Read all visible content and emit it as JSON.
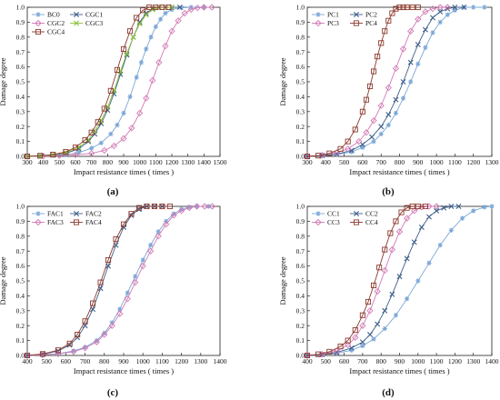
{
  "chart_data": [
    {
      "type": "line",
      "panel_label": "(a)",
      "xlabel": "Impact resistance times ( times )",
      "ylabel": "Damage degree",
      "xlim": [
        300,
        1500
      ],
      "ylim": [
        0,
        1.0
      ],
      "xticks": [
        300,
        400,
        500,
        600,
        700,
        800,
        900,
        1000,
        1100,
        1200,
        1300,
        1400,
        1500
      ],
      "yticks": [
        0,
        0.1,
        0.2,
        0.3,
        0.4,
        0.5,
        0.6,
        0.7,
        0.8,
        0.9,
        1.0
      ],
      "legend": "top-left, 2 columns",
      "series": [
        {
          "name": "BC0",
          "color": "#7aa7d6",
          "marker": "star",
          "x": [
            300,
            380,
            460,
            540,
            620,
            700,
            760,
            820,
            860,
            900,
            940,
            980,
            1010,
            1040,
            1070,
            1100,
            1130,
            1160,
            1200,
            1260,
            1320,
            1400
          ],
          "y": [
            0.0,
            0.002,
            0.006,
            0.012,
            0.025,
            0.055,
            0.09,
            0.15,
            0.21,
            0.29,
            0.4,
            0.53,
            0.63,
            0.72,
            0.8,
            0.87,
            0.92,
            0.96,
            0.985,
            0.997,
            1.0,
            1.0
          ]
        },
        {
          "name": "CGC1",
          "color": "#3e5f8a",
          "marker": "x",
          "x": [
            300,
            380,
            460,
            540,
            620,
            680,
            720,
            760,
            800,
            840,
            880,
            920,
            960,
            1000,
            1040,
            1080,
            1120,
            1160,
            1200,
            1250
          ],
          "y": [
            0.0,
            0.003,
            0.008,
            0.02,
            0.05,
            0.1,
            0.15,
            0.22,
            0.31,
            0.42,
            0.55,
            0.68,
            0.8,
            0.9,
            0.96,
            0.99,
            1.0,
            1.0,
            1.0,
            1.0
          ]
        },
        {
          "name": "CGC2",
          "color": "#d27ab5",
          "marker": "diamond",
          "x": [
            300,
            400,
            500,
            600,
            700,
            780,
            840,
            900,
            950,
            1000,
            1040,
            1080,
            1120,
            1160,
            1200,
            1240,
            1280,
            1320,
            1360,
            1400,
            1450
          ],
          "y": [
            0.0,
            0.002,
            0.005,
            0.01,
            0.02,
            0.04,
            0.07,
            0.12,
            0.19,
            0.29,
            0.39,
            0.51,
            0.63,
            0.74,
            0.84,
            0.91,
            0.96,
            0.985,
            0.996,
            1.0,
            1.0
          ]
        },
        {
          "name": "CGC3",
          "color": "#8bbf3a",
          "marker": "x",
          "x": [
            300,
            380,
            460,
            540,
            620,
            680,
            720,
            760,
            800,
            840,
            880,
            920,
            960,
            1000,
            1040,
            1080,
            1120,
            1160,
            1200
          ],
          "y": [
            0.0,
            0.003,
            0.01,
            0.025,
            0.06,
            0.11,
            0.17,
            0.24,
            0.33,
            0.44,
            0.57,
            0.69,
            0.8,
            0.89,
            0.95,
            0.985,
            1.0,
            1.0,
            1.0
          ]
        },
        {
          "name": "CGC4",
          "color": "#8b3a2e",
          "marker": "square",
          "x": [
            300,
            380,
            460,
            540,
            600,
            660,
            700,
            740,
            780,
            820,
            860,
            900,
            940,
            980,
            1020,
            1060,
            1100,
            1140,
            1180
          ],
          "y": [
            0.0,
            0.004,
            0.012,
            0.03,
            0.06,
            0.11,
            0.16,
            0.23,
            0.32,
            0.44,
            0.58,
            0.72,
            0.84,
            0.93,
            0.98,
            1.0,
            1.0,
            1.0,
            1.0
          ]
        }
      ]
    },
    {
      "type": "line",
      "panel_label": "(b)",
      "xlabel": "Impact resistance times ( times )",
      "ylabel": "Damage degree",
      "xlim": [
        300,
        1300
      ],
      "ylim": [
        0,
        1.0
      ],
      "xticks": [
        300,
        400,
        500,
        600,
        700,
        800,
        900,
        1000,
        1100,
        1200,
        1300
      ],
      "yticks": [
        0,
        0.1,
        0.2,
        0.3,
        0.4,
        0.5,
        0.6,
        0.7,
        0.8,
        0.9,
        1.0
      ],
      "legend": "top-left, 2 columns",
      "series": [
        {
          "name": "PC1",
          "color": "#7aa7d6",
          "marker": "star",
          "x": [
            300,
            380,
            460,
            540,
            600,
            660,
            700,
            740,
            780,
            820,
            860,
            900,
            940,
            980,
            1020,
            1060,
            1100,
            1150,
            1200,
            1260
          ],
          "y": [
            0.0,
            0.005,
            0.012,
            0.03,
            0.06,
            0.1,
            0.15,
            0.21,
            0.29,
            0.39,
            0.5,
            0.62,
            0.73,
            0.83,
            0.9,
            0.95,
            0.98,
            1.0,
            1.0,
            1.0
          ]
        },
        {
          "name": "PC2",
          "color": "#3e5f8a",
          "marker": "x",
          "x": [
            300,
            380,
            460,
            540,
            600,
            650,
            700,
            740,
            780,
            820,
            860,
            900,
            940,
            980,
            1020,
            1060,
            1100,
            1150
          ],
          "y": [
            0.0,
            0.006,
            0.015,
            0.04,
            0.08,
            0.13,
            0.2,
            0.28,
            0.38,
            0.5,
            0.63,
            0.75,
            0.85,
            0.93,
            0.97,
            0.99,
            1.0,
            1.0
          ]
        },
        {
          "name": "PC3",
          "color": "#d27ab5",
          "marker": "diamond",
          "x": [
            300,
            380,
            460,
            520,
            580,
            620,
            660,
            700,
            740,
            780,
            820,
            860,
            900,
            940,
            980,
            1020,
            1060
          ],
          "y": [
            0.0,
            0.008,
            0.025,
            0.05,
            0.1,
            0.16,
            0.24,
            0.34,
            0.46,
            0.59,
            0.72,
            0.84,
            0.92,
            0.97,
            0.99,
            1.0,
            1.0
          ]
        },
        {
          "name": "PC4",
          "color": "#8b3a2e",
          "marker": "square",
          "x": [
            300,
            360,
            420,
            480,
            520,
            560,
            600,
            620,
            640,
            660,
            680,
            700,
            720,
            740,
            760,
            780,
            800,
            820,
            840,
            870,
            900
          ],
          "y": [
            0.0,
            0.005,
            0.02,
            0.05,
            0.1,
            0.18,
            0.3,
            0.38,
            0.47,
            0.57,
            0.67,
            0.76,
            0.84,
            0.91,
            0.96,
            0.99,
            1.0,
            1.0,
            1.0,
            1.0,
            1.0
          ]
        }
      ]
    },
    {
      "type": "line",
      "panel_label": "(c)",
      "xlabel": "Impact resistance times ( times )",
      "ylabel": "Damage degree",
      "xlim": [
        400,
        1400
      ],
      "ylim": [
        0,
        1.0
      ],
      "xticks": [
        400,
        500,
        600,
        700,
        800,
        900,
        1000,
        1100,
        1200,
        1300,
        1400
      ],
      "yticks": [
        0,
        0.1,
        0.2,
        0.3,
        0.4,
        0.5,
        0.6,
        0.7,
        0.8,
        0.9,
        1.0
      ],
      "legend": "top-left, 2 columns",
      "series": [
        {
          "name": "FAC1",
          "color": "#7aa7d6",
          "marker": "star",
          "x": [
            400,
            480,
            560,
            640,
            700,
            760,
            800,
            840,
            880,
            920,
            960,
            1000,
            1040,
            1080,
            1120,
            1160,
            1200,
            1240,
            1280,
            1340
          ],
          "y": [
            0.0,
            0.005,
            0.012,
            0.03,
            0.055,
            0.1,
            0.15,
            0.22,
            0.31,
            0.42,
            0.53,
            0.64,
            0.74,
            0.83,
            0.9,
            0.95,
            0.98,
            0.995,
            1.0,
            1.0
          ]
        },
        {
          "name": "FAC2",
          "color": "#3e5f8a",
          "marker": "x",
          "x": [
            400,
            480,
            560,
            620,
            660,
            700,
            740,
            780,
            820,
            860,
            900,
            940,
            980,
            1020,
            1060,
            1100
          ],
          "y": [
            0.0,
            0.008,
            0.03,
            0.07,
            0.12,
            0.2,
            0.31,
            0.45,
            0.6,
            0.74,
            0.86,
            0.94,
            0.98,
            1.0,
            1.0,
            1.0
          ]
        },
        {
          "name": "FAC3",
          "color": "#d27ab5",
          "marker": "diamond",
          "x": [
            400,
            480,
            560,
            640,
            700,
            760,
            800,
            840,
            880,
            920,
            960,
            1000,
            1040,
            1080,
            1120,
            1160,
            1200,
            1240,
            1280,
            1320,
            1360
          ],
          "y": [
            0.0,
            0.004,
            0.01,
            0.025,
            0.05,
            0.09,
            0.14,
            0.2,
            0.28,
            0.38,
            0.49,
            0.6,
            0.7,
            0.8,
            0.88,
            0.94,
            0.97,
            0.99,
            1.0,
            1.0,
            1.0
          ]
        },
        {
          "name": "FAC4",
          "color": "#8b3a2e",
          "marker": "square",
          "x": [
            400,
            480,
            560,
            620,
            660,
            700,
            740,
            780,
            820,
            860,
            900,
            940,
            980,
            1020,
            1060,
            1100,
            1140
          ],
          "y": [
            0.0,
            0.01,
            0.035,
            0.08,
            0.14,
            0.23,
            0.35,
            0.49,
            0.64,
            0.78,
            0.88,
            0.95,
            0.99,
            1.0,
            1.0,
            1.0,
            1.0
          ]
        }
      ]
    },
    {
      "type": "line",
      "panel_label": "(d)",
      "xlabel": "Impact resistance times ( times )",
      "ylabel": "Damage degree",
      "xlim": [
        400,
        1400
      ],
      "ylim": [
        0,
        1.0
      ],
      "xticks": [
        400,
        500,
        600,
        700,
        800,
        900,
        1000,
        1100,
        1200,
        1300,
        1400
      ],
      "yticks": [
        0,
        0.1,
        0.2,
        0.3,
        0.4,
        0.5,
        0.6,
        0.7,
        0.8,
        0.9,
        1.0
      ],
      "legend": "top-left, 2 columns",
      "series": [
        {
          "name": "CC1",
          "color": "#7aa7d6",
          "marker": "star",
          "x": [
            400,
            480,
            560,
            640,
            700,
            760,
            820,
            880,
            940,
            1000,
            1060,
            1120,
            1180,
            1240,
            1300,
            1360,
            1400
          ],
          "y": [
            0.0,
            0.005,
            0.015,
            0.035,
            0.065,
            0.11,
            0.18,
            0.27,
            0.38,
            0.5,
            0.62,
            0.74,
            0.84,
            0.92,
            0.97,
            0.995,
            1.0
          ]
        },
        {
          "name": "CC2",
          "color": "#3e5f8a",
          "marker": "x",
          "x": [
            400,
            480,
            560,
            640,
            700,
            740,
            780,
            820,
            860,
            900,
            940,
            980,
            1020,
            1060,
            1100,
            1140,
            1180,
            1220
          ],
          "y": [
            0.0,
            0.006,
            0.02,
            0.05,
            0.09,
            0.14,
            0.21,
            0.3,
            0.41,
            0.53,
            0.65,
            0.76,
            0.86,
            0.93,
            0.97,
            0.99,
            1.0,
            1.0
          ]
        },
        {
          "name": "CC3",
          "color": "#d27ab5",
          "marker": "diamond",
          "x": [
            400,
            480,
            560,
            620,
            660,
            700,
            740,
            780,
            820,
            860,
            900,
            940,
            980,
            1020,
            1060,
            1100
          ],
          "y": [
            0.0,
            0.008,
            0.03,
            0.07,
            0.12,
            0.2,
            0.3,
            0.43,
            0.57,
            0.71,
            0.83,
            0.92,
            0.97,
            0.995,
            1.0,
            1.0
          ]
        },
        {
          "name": "CC4",
          "color": "#8b3a2e",
          "marker": "square",
          "x": [
            400,
            460,
            520,
            580,
            620,
            660,
            700,
            730,
            760,
            790,
            820,
            850,
            880,
            910,
            940,
            970,
            1000,
            1040
          ],
          "y": [
            0.0,
            0.008,
            0.025,
            0.06,
            0.1,
            0.17,
            0.27,
            0.36,
            0.47,
            0.59,
            0.71,
            0.82,
            0.9,
            0.96,
            0.99,
            1.0,
            1.0,
            1.0
          ]
        }
      ]
    }
  ]
}
